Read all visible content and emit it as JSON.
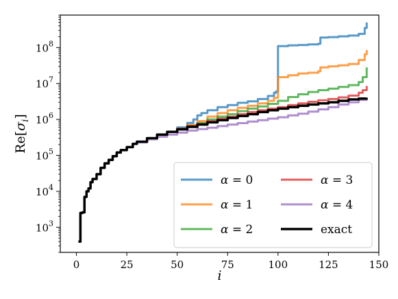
{
  "chart_data": {
    "type": "line",
    "title": "",
    "xlabel": "i",
    "ylabel": "Re[σ_i]",
    "y_scale": "log",
    "xlim": [
      -8,
      150
    ],
    "ylim": [
      200,
      800000000
    ],
    "x_ticks": [
      0,
      25,
      50,
      75,
      100,
      125,
      150
    ],
    "x_tick_labels": [
      "0",
      "25",
      "50",
      "75",
      "100",
      "125",
      "150"
    ],
    "y_ticks": [
      1000,
      10000,
      100000,
      1000000,
      10000000,
      100000000
    ],
    "y_tick_labels": [
      {
        "base": "10",
        "exp": "3"
      },
      {
        "base": "10",
        "exp": "4"
      },
      {
        "base": "10",
        "exp": "5"
      },
      {
        "base": "10",
        "exp": "6"
      },
      {
        "base": "10",
        "exp": "7"
      },
      {
        "base": "10",
        "exp": "8"
      }
    ],
    "legend_position": "lower-right",
    "grid": false,
    "series": [
      {
        "name": "α = 0",
        "label_sym": "α",
        "label_val": "0",
        "color": "#1f77b4",
        "opacity": 0.75,
        "width": 3,
        "points": [
          [
            1,
            400
          ],
          [
            2,
            2500
          ],
          [
            3,
            2600
          ],
          [
            4,
            7000
          ],
          [
            5,
            10000
          ],
          [
            6,
            12000
          ],
          [
            7,
            18000
          ],
          [
            8,
            22000
          ],
          [
            10,
            30000
          ],
          [
            12,
            45000
          ],
          [
            14,
            60000
          ],
          [
            16,
            75000
          ],
          [
            18,
            95000
          ],
          [
            20,
            120000
          ],
          [
            22,
            140000
          ],
          [
            25,
            170000
          ],
          [
            28,
            210000
          ],
          [
            30,
            240000
          ],
          [
            35,
            300000
          ],
          [
            40,
            380000
          ],
          [
            45,
            450000
          ],
          [
            50,
            600000
          ],
          [
            55,
            800000
          ],
          [
            58,
            1000000
          ],
          [
            60,
            1300000
          ],
          [
            62,
            1500000
          ],
          [
            65,
            1800000
          ],
          [
            70,
            2200000
          ],
          [
            75,
            2500000
          ],
          [
            80,
            2900000
          ],
          [
            85,
            3200000
          ],
          [
            90,
            3700000
          ],
          [
            95,
            4500000
          ],
          [
            98,
            5500000
          ],
          [
            99,
            6000000
          ],
          [
            100,
            110000000
          ],
          [
            105,
            115000000
          ],
          [
            110,
            118000000
          ],
          [
            115,
            122000000
          ],
          [
            120,
            128000000
          ],
          [
            121,
            190000000
          ],
          [
            125,
            195000000
          ],
          [
            130,
            205000000
          ],
          [
            135,
            215000000
          ],
          [
            140,
            240000000
          ],
          [
            143,
            350000000
          ],
          [
            144,
            500000000
          ]
        ]
      },
      {
        "name": "α = 1",
        "label_sym": "α",
        "label_val": "1",
        "color": "#ff7f0e",
        "opacity": 0.75,
        "width": 3,
        "points": [
          [
            1,
            400
          ],
          [
            2,
            2500
          ],
          [
            3,
            2600
          ],
          [
            4,
            7000
          ],
          [
            5,
            10000
          ],
          [
            6,
            12000
          ],
          [
            7,
            18000
          ],
          [
            8,
            22000
          ],
          [
            10,
            30000
          ],
          [
            12,
            45000
          ],
          [
            14,
            60000
          ],
          [
            16,
            75000
          ],
          [
            18,
            95000
          ],
          [
            20,
            120000
          ],
          [
            22,
            140000
          ],
          [
            25,
            170000
          ],
          [
            28,
            210000
          ],
          [
            30,
            240000
          ],
          [
            35,
            300000
          ],
          [
            40,
            380000
          ],
          [
            45,
            450000
          ],
          [
            50,
            550000
          ],
          [
            55,
            700000
          ],
          [
            60,
            900000
          ],
          [
            65,
            1200000
          ],
          [
            70,
            1500000
          ],
          [
            75,
            1800000
          ],
          [
            80,
            2100000
          ],
          [
            85,
            2400000
          ],
          [
            90,
            2800000
          ],
          [
            95,
            3300000
          ],
          [
            98,
            4000000
          ],
          [
            100,
            15000000
          ],
          [
            105,
            17000000
          ],
          [
            110,
            19000000
          ],
          [
            115,
            20000000
          ],
          [
            120,
            22000000
          ],
          [
            121,
            28000000
          ],
          [
            125,
            30000000
          ],
          [
            130,
            32000000
          ],
          [
            135,
            35000000
          ],
          [
            140,
            45000000
          ],
          [
            143,
            65000000
          ],
          [
            144,
            85000000
          ]
        ]
      },
      {
        "name": "α = 2",
        "label_sym": "α",
        "label_val": "2",
        "color": "#2ca02c",
        "opacity": 0.75,
        "width": 3,
        "points": [
          [
            1,
            400
          ],
          [
            2,
            2500
          ],
          [
            3,
            2600
          ],
          [
            4,
            7000
          ],
          [
            5,
            10000
          ],
          [
            6,
            12000
          ],
          [
            7,
            18000
          ],
          [
            8,
            22000
          ],
          [
            10,
            30000
          ],
          [
            12,
            45000
          ],
          [
            14,
            60000
          ],
          [
            16,
            75000
          ],
          [
            18,
            95000
          ],
          [
            20,
            120000
          ],
          [
            22,
            140000
          ],
          [
            25,
            170000
          ],
          [
            28,
            210000
          ],
          [
            30,
            240000
          ],
          [
            35,
            300000
          ],
          [
            40,
            380000
          ],
          [
            45,
            450000
          ],
          [
            50,
            550000
          ],
          [
            55,
            650000
          ],
          [
            60,
            800000
          ],
          [
            65,
            1000000
          ],
          [
            70,
            1200000
          ],
          [
            75,
            1400000
          ],
          [
            80,
            1700000
          ],
          [
            85,
            2000000
          ],
          [
            90,
            2300000
          ],
          [
            95,
            2700000
          ],
          [
            100,
            3300000
          ],
          [
            105,
            4200000
          ],
          [
            110,
            5000000
          ],
          [
            115,
            5800000
          ],
          [
            120,
            6500000
          ],
          [
            125,
            7200000
          ],
          [
            130,
            8000000
          ],
          [
            135,
            9000000
          ],
          [
            140,
            11000000
          ],
          [
            142,
            15000000
          ],
          [
            144,
            28000000
          ]
        ]
      },
      {
        "name": "α = 3",
        "label_sym": "α",
        "label_val": "3",
        "color": "#d62728",
        "opacity": 0.75,
        "width": 3,
        "points": [
          [
            1,
            400
          ],
          [
            2,
            2500
          ],
          [
            3,
            2600
          ],
          [
            4,
            7000
          ],
          [
            5,
            10000
          ],
          [
            6,
            12000
          ],
          [
            7,
            18000
          ],
          [
            8,
            22000
          ],
          [
            10,
            30000
          ],
          [
            12,
            45000
          ],
          [
            14,
            60000
          ],
          [
            16,
            75000
          ],
          [
            18,
            95000
          ],
          [
            20,
            120000
          ],
          [
            22,
            140000
          ],
          [
            25,
            170000
          ],
          [
            28,
            210000
          ],
          [
            30,
            240000
          ],
          [
            35,
            300000
          ],
          [
            40,
            380000
          ],
          [
            45,
            450000
          ],
          [
            50,
            550000
          ],
          [
            55,
            650000
          ],
          [
            60,
            750000
          ],
          [
            65,
            900000
          ],
          [
            70,
            1050000
          ],
          [
            75,
            1200000
          ],
          [
            80,
            1400000
          ],
          [
            85,
            1600000
          ],
          [
            90,
            1800000
          ],
          [
            95,
            2000000
          ],
          [
            100,
            2200000
          ],
          [
            105,
            2500000
          ],
          [
            110,
            2800000
          ],
          [
            115,
            3100000
          ],
          [
            120,
            3400000
          ],
          [
            125,
            3700000
          ],
          [
            130,
            4100000
          ],
          [
            135,
            4600000
          ],
          [
            140,
            5500000
          ],
          [
            142,
            6500000
          ],
          [
            144,
            8500000
          ]
        ]
      },
      {
        "name": "α = 4",
        "label_sym": "α",
        "label_val": "4",
        "color": "#9467bd",
        "opacity": 0.75,
        "width": 3,
        "points": [
          [
            1,
            400
          ],
          [
            2,
            2500
          ],
          [
            3,
            2600
          ],
          [
            4,
            7000
          ],
          [
            5,
            10000
          ],
          [
            6,
            12000
          ],
          [
            7,
            18000
          ],
          [
            8,
            22000
          ],
          [
            10,
            30000
          ],
          [
            12,
            45000
          ],
          [
            14,
            60000
          ],
          [
            16,
            75000
          ],
          [
            18,
            95000
          ],
          [
            20,
            120000
          ],
          [
            22,
            140000
          ],
          [
            25,
            170000
          ],
          [
            28,
            210000
          ],
          [
            30,
            230000
          ],
          [
            35,
            280000
          ],
          [
            40,
            330000
          ],
          [
            45,
            380000
          ],
          [
            50,
            430000
          ],
          [
            55,
            490000
          ],
          [
            60,
            540000
          ],
          [
            65,
            590000
          ],
          [
            70,
            650000
          ],
          [
            75,
            720000
          ],
          [
            80,
            790000
          ],
          [
            85,
            870000
          ],
          [
            90,
            950000
          ],
          [
            95,
            1050000
          ],
          [
            100,
            1150000
          ],
          [
            105,
            1300000
          ],
          [
            110,
            1450000
          ],
          [
            115,
            1650000
          ],
          [
            120,
            1900000
          ],
          [
            125,
            2200000
          ],
          [
            130,
            2600000
          ],
          [
            135,
            3000000
          ],
          [
            140,
            3500000
          ],
          [
            144,
            4000000
          ]
        ]
      },
      {
        "name": "exact",
        "label_sym": "",
        "label_val": "exact",
        "color": "#000000",
        "opacity": 1,
        "width": 3.5,
        "points": [
          [
            1,
            400
          ],
          [
            2,
            2500
          ],
          [
            3,
            2600
          ],
          [
            4,
            7000
          ],
          [
            5,
            10000
          ],
          [
            6,
            12000
          ],
          [
            7,
            18000
          ],
          [
            8,
            22000
          ],
          [
            10,
            30000
          ],
          [
            12,
            45000
          ],
          [
            14,
            60000
          ],
          [
            16,
            75000
          ],
          [
            18,
            95000
          ],
          [
            20,
            120000
          ],
          [
            22,
            140000
          ],
          [
            25,
            170000
          ],
          [
            28,
            210000
          ],
          [
            30,
            240000
          ],
          [
            35,
            300000
          ],
          [
            40,
            380000
          ],
          [
            45,
            450000
          ],
          [
            50,
            530000
          ],
          [
            55,
            620000
          ],
          [
            60,
            720000
          ],
          [
            65,
            830000
          ],
          [
            70,
            950000
          ],
          [
            75,
            1100000
          ],
          [
            80,
            1250000
          ],
          [
            85,
            1400000
          ],
          [
            90,
            1600000
          ],
          [
            95,
            1800000
          ],
          [
            100,
            2000000
          ],
          [
            105,
            2200000
          ],
          [
            110,
            2400000
          ],
          [
            115,
            2600000
          ],
          [
            120,
            2800000
          ],
          [
            125,
            3000000
          ],
          [
            130,
            3300000
          ],
          [
            135,
            3600000
          ],
          [
            140,
            3800000
          ],
          [
            144,
            4000000
          ]
        ]
      }
    ]
  }
}
